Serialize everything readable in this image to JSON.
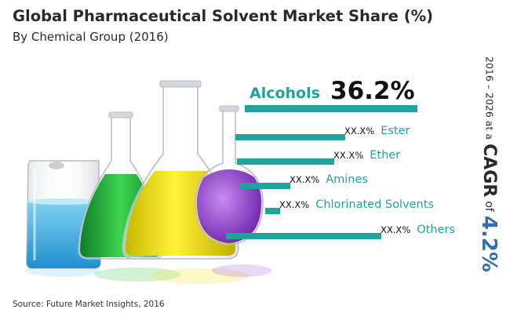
{
  "title": "Global Pharmaceutical Solvent Market Share (%)",
  "subtitle": "By Chemical Group (2016)",
  "source": "Source: Future Market Insights, 2016",
  "side_note": {
    "years": "2016 – 2026 at a",
    "cagr_label": "CAGR",
    "of_label": "of",
    "cagr_value": "4.2%"
  },
  "colors": {
    "bar": "#1fa39a",
    "label": "#1fa39a",
    "value_text": "#111111",
    "accent_blue": "#2f6fb5"
  },
  "icons": [
    "laboratory-glassware-image"
  ],
  "chart_data": {
    "type": "bar",
    "orientation": "horizontal",
    "categories": [
      "Alcohols",
      "Ester",
      "Ether",
      "Amines",
      "Chlorinated Solvents",
      "Others"
    ],
    "values": [
      36.2,
      null,
      null,
      null,
      null,
      null
    ],
    "value_labels": [
      "36.2%",
      "XX.X%",
      "XX.X%",
      "XX.X%",
      "XX.X%",
      "XX.X%"
    ],
    "title": "Global Pharmaceutical Solvent Market Share (%)",
    "subtitle": "By Chemical Group (2016)",
    "xlabel": "",
    "ylabel": "",
    "grid": false,
    "legend": "none"
  }
}
